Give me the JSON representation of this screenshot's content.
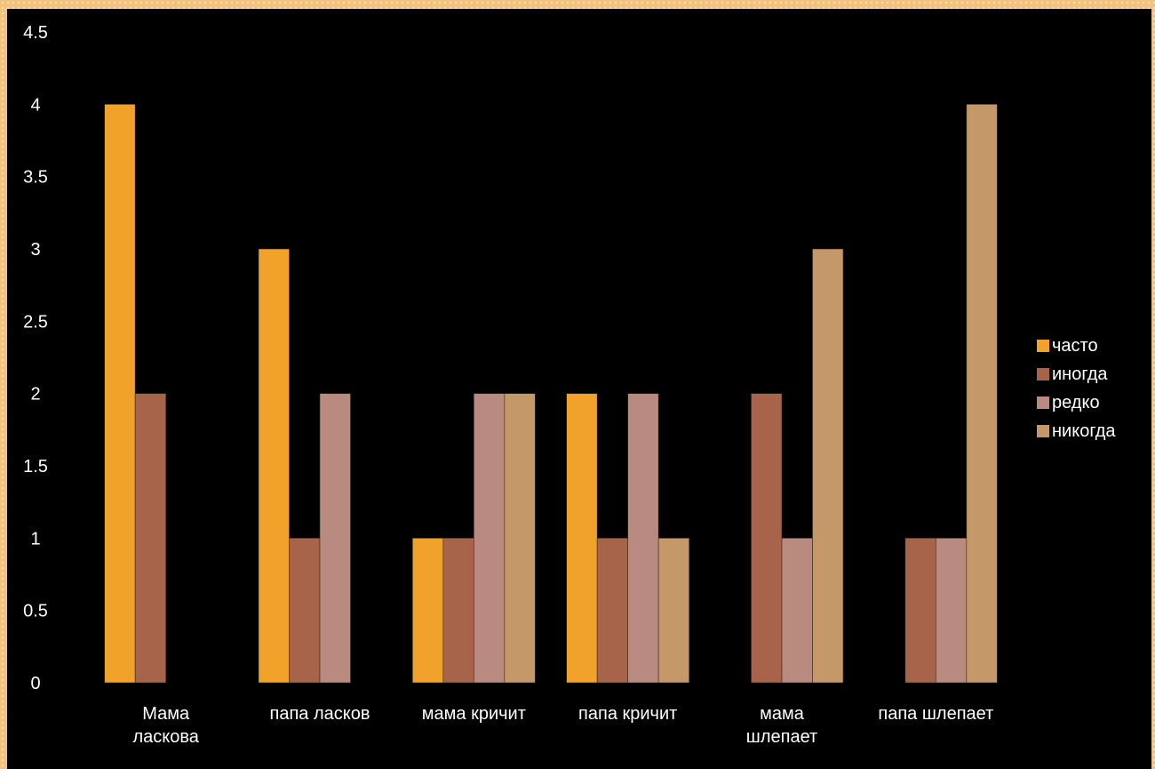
{
  "chart_data": {
    "type": "bar",
    "title": "",
    "xlabel": "",
    "ylabel": "",
    "ylim": [
      0,
      4.5
    ],
    "yticks": [
      "0",
      "0.5",
      "1",
      "1.5",
      "2",
      "2.5",
      "3",
      "3.5",
      "4",
      "4.5"
    ],
    "grid": false,
    "legend_position": "right",
    "categories": [
      [
        "Мама",
        "ласкова"
      ],
      [
        "папа ласков"
      ],
      [
        "мама кричит"
      ],
      [
        "папа кричит"
      ],
      [
        "мама",
        "шлепает"
      ],
      [
        "папа шлепает"
      ]
    ],
    "series": [
      {
        "name": "часто",
        "color": "#f0a22b",
        "values": [
          4,
          3,
          1,
          2,
          0,
          0
        ]
      },
      {
        "name": "иногда",
        "color": "#a8644a",
        "values": [
          2,
          1,
          1,
          1,
          2,
          1
        ]
      },
      {
        "name": "редко",
        "color": "#b88a80",
        "values": [
          0,
          2,
          2,
          2,
          1,
          1
        ]
      },
      {
        "name": "никогда",
        "color": "#c49868",
        "values": [
          0,
          0,
          2,
          1,
          3,
          4
        ]
      }
    ]
  }
}
